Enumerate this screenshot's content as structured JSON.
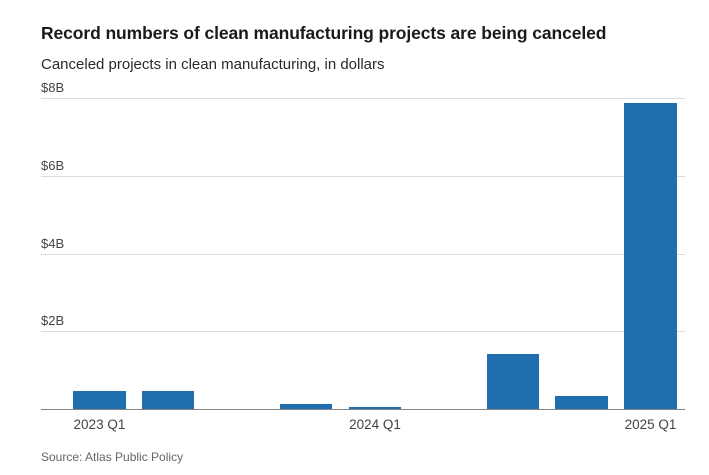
{
  "header": {
    "title": "Record numbers of clean manufacturing projects are being canceled",
    "subtitle": "Canceled projects in clean manufacturing, in dollars"
  },
  "source": "Source: Atlas Public Policy",
  "colors": {
    "bar": "#1f6eb0",
    "gridline": "#dcdcdc",
    "baseline": "#848484",
    "background": "#ffffff"
  },
  "chart_data": {
    "type": "bar",
    "title": "Record numbers of clean manufacturing projects are being canceled",
    "subtitle": "Canceled projects in clean manufacturing, in dollars",
    "unit": "billions of dollars",
    "categories": [
      "2023 Q1",
      "2023 Q2",
      "2023 Q3",
      "2023 Q4",
      "2024 Q1",
      "2024 Q2",
      "2024 Q3",
      "2024 Q4",
      "2025 Q1"
    ],
    "values": [
      0.5,
      0.5,
      0,
      0.15,
      0.08,
      0,
      1.45,
      0.37,
      7.9
    ],
    "xlabel": "",
    "ylabel": "",
    "ylim": [
      0,
      8.36
    ],
    "grid": true,
    "legend": false,
    "bar_color": "#1f6eb0",
    "yticks": [
      {
        "value": 2,
        "label": "$2B"
      },
      {
        "value": 4,
        "label": "$4B"
      },
      {
        "value": 6,
        "label": "$6B"
      },
      {
        "value": 8,
        "label": "$8B"
      }
    ],
    "xtick_labels": [
      {
        "index": 0,
        "label": "2023 Q1"
      },
      {
        "index": 4,
        "label": "2024 Q1"
      },
      {
        "index": 8,
        "label": "2025 Q1"
      }
    ]
  }
}
